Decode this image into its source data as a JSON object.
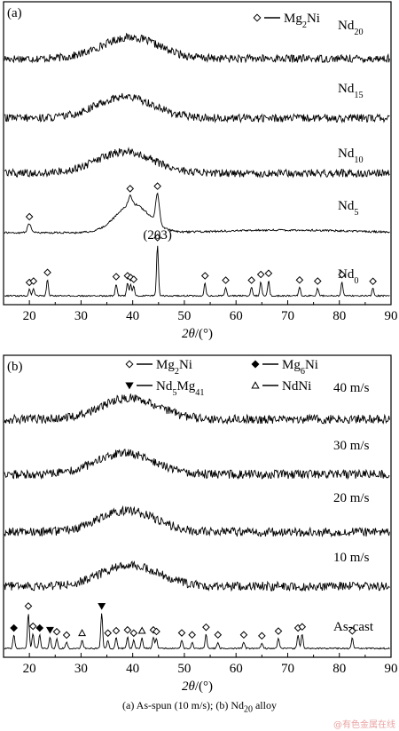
{
  "caption_parts": [
    "(a) As-spun (10 m/s); (b) Nd",
    "20",
    " alloy"
  ],
  "watermark": "@有色金属在线",
  "chart_data": [
    {
      "type": "line",
      "panel_label": "(a)",
      "xlabel_parts": [
        "2",
        "θ",
        "/(°)"
      ],
      "xlim": [
        15,
        90
      ],
      "xticks": [
        20,
        30,
        40,
        50,
        60,
        70,
        80,
        90
      ],
      "y_axis": "no ticks (intensity, offset traces)",
      "legend": [
        {
          "marker": "◇",
          "label": "Mg",
          "sub": "2",
          "tail": "Ni"
        }
      ],
      "annotations": [
        {
          "text": "(203)",
          "x": 44.8
        }
      ],
      "series": [
        {
          "name": "Nd",
          "sub": "20",
          "form": "amorphous hump",
          "hump_center": 39.5,
          "peaks": []
        },
        {
          "name": "Nd",
          "sub": "15",
          "form": "amorphous hump",
          "hump_center": 38.5,
          "peaks": []
        },
        {
          "name": "Nd",
          "sub": "10",
          "form": "amorphous hump",
          "hump_center": 38.5,
          "peaks": []
        },
        {
          "name": "Nd",
          "sub": "5",
          "form": "nanocrystalline hump with peaks",
          "hump_center": 40,
          "peaks": [
            {
              "x": 20.0,
              "phase": "Mg2Ni"
            },
            {
              "x": 39.5,
              "phase": "Mg2Ni"
            },
            {
              "x": 44.8,
              "phase": "Mg2Ni"
            }
          ]
        },
        {
          "name": "Nd",
          "sub": "0",
          "form": "crystalline",
          "peaks": [
            {
              "x": 20.0,
              "phase": "Mg2Ni"
            },
            {
              "x": 20.8,
              "phase": "Mg2Ni"
            },
            {
              "x": 23.5,
              "phase": "Mg2Ni"
            },
            {
              "x": 36.8,
              "phase": "Mg2Ni"
            },
            {
              "x": 39.0,
              "phase": "Mg2Ni"
            },
            {
              "x": 39.6,
              "phase": "Mg2Ni"
            },
            {
              "x": 40.2,
              "phase": "Mg2Ni"
            },
            {
              "x": 44.8,
              "phase": "Mg2Ni"
            },
            {
              "x": 54.0,
              "phase": "Mg2Ni"
            },
            {
              "x": 58.0,
              "phase": "Mg2Ni"
            },
            {
              "x": 63.0,
              "phase": "Mg2Ni"
            },
            {
              "x": 64.8,
              "phase": "Mg2Ni"
            },
            {
              "x": 66.3,
              "phase": "Mg2Ni"
            },
            {
              "x": 72.3,
              "phase": "Mg2Ni"
            },
            {
              "x": 75.8,
              "phase": "Mg2Ni"
            },
            {
              "x": 80.5,
              "phase": "Mg2Ni"
            },
            {
              "x": 86.5,
              "phase": "Mg2Ni"
            }
          ]
        }
      ]
    },
    {
      "type": "line",
      "panel_label": "(b)",
      "xlabel_parts": [
        "2",
        "θ",
        "/(°)"
      ],
      "xlim": [
        15,
        90
      ],
      "xticks": [
        20,
        30,
        40,
        50,
        60,
        70,
        80,
        90
      ],
      "y_axis": "no ticks (intensity, offset traces)",
      "legend": [
        {
          "marker": "◇",
          "label": "Mg",
          "sub": "2",
          "tail": "Ni"
        },
        {
          "marker": "◆",
          "label": "Mg",
          "sub": "6",
          "tail": "Ni"
        },
        {
          "marker": "▼",
          "label": "Nd",
          "sub": "5",
          "tail": "Mg",
          "sub2": "41"
        },
        {
          "marker": "△",
          "label": "NdNi",
          "sub": "",
          "tail": ""
        }
      ],
      "series": [
        {
          "name": "40 m/s",
          "form": "amorphous hump",
          "hump_center": 39.5,
          "peaks": []
        },
        {
          "name": "30 m/s",
          "form": "amorphous hump",
          "hump_center": 38.5,
          "peaks": []
        },
        {
          "name": "20 m/s",
          "form": "amorphous hump",
          "hump_center": 39.0,
          "peaks": []
        },
        {
          "name": "10 m/s",
          "form": "amorphous hump",
          "hump_center": 39.5,
          "peaks": []
        },
        {
          "name": "As-cast",
          "form": "crystalline",
          "peaks": [
            {
              "x": 17.0,
              "phase": "Mg6Ni"
            },
            {
              "x": 19.8,
              "phase": "Mg2Ni"
            },
            {
              "x": 20.7,
              "phase": "Mg2Ni"
            },
            {
              "x": 22.0,
              "phase": "Mg6Ni"
            },
            {
              "x": 24.0,
              "phase": "Nd5Mg41"
            },
            {
              "x": 25.3,
              "phase": "Mg2Ni"
            },
            {
              "x": 27.2,
              "phase": "Mg2Ni"
            },
            {
              "x": 30.2,
              "phase": "NdNi"
            },
            {
              "x": 34.0,
              "phase": "Nd5Mg41"
            },
            {
              "x": 35.2,
              "phase": "Mg2Ni"
            },
            {
              "x": 36.8,
              "phase": "Mg2Ni"
            },
            {
              "x": 39.0,
              "phase": "Mg2Ni"
            },
            {
              "x": 40.2,
              "phase": "Mg2Ni"
            },
            {
              "x": 41.8,
              "phase": "NdNi"
            },
            {
              "x": 44.0,
              "phase": "Mg2Ni"
            },
            {
              "x": 44.6,
              "phase": "Mg2Ni"
            },
            {
              "x": 49.5,
              "phase": "Mg2Ni"
            },
            {
              "x": 51.5,
              "phase": "Mg2Ni"
            },
            {
              "x": 54.2,
              "phase": "Mg2Ni"
            },
            {
              "x": 56.5,
              "phase": "Mg2Ni"
            },
            {
              "x": 61.5,
              "phase": "Mg2Ni"
            },
            {
              "x": 65.0,
              "phase": "Mg2Ni"
            },
            {
              "x": 68.2,
              "phase": "Mg2Ni"
            },
            {
              "x": 72.0,
              "phase": "Mg2Ni"
            },
            {
              "x": 72.8,
              "phase": "Mg2Ni"
            },
            {
              "x": 82.5,
              "phase": "Mg2Ni"
            }
          ]
        }
      ]
    }
  ]
}
